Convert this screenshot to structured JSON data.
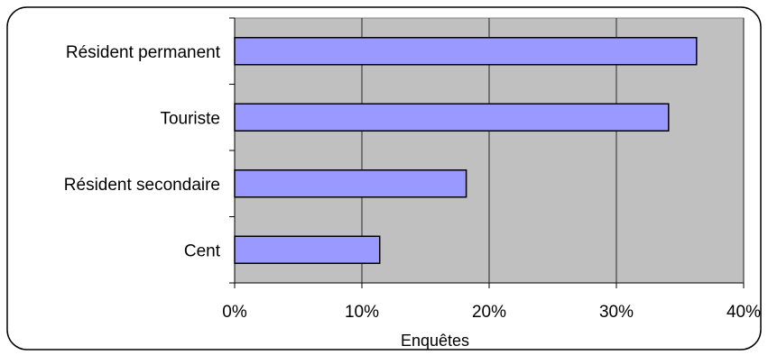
{
  "chart_data": {
    "type": "bar",
    "orientation": "horizontal",
    "categories": [
      "Résident permanent",
      "Touriste",
      "Résident secondaire",
      "Cent"
    ],
    "values": [
      36.3,
      34.1,
      18.2,
      11.4
    ],
    "value_unit": "%",
    "xlabel": "Enquêtes",
    "ylabel": "",
    "title": "",
    "xlim": [
      0,
      40
    ],
    "xticks": [
      0,
      10,
      20,
      30,
      40
    ],
    "xtick_labels": [
      "0%",
      "10%",
      "20%",
      "30%",
      "40%"
    ],
    "grid": "vertical",
    "legend": "none",
    "colors": {
      "bar_fill": "#9999ff",
      "plot_background": "#c0c0c0",
      "frame": "#000000"
    }
  }
}
